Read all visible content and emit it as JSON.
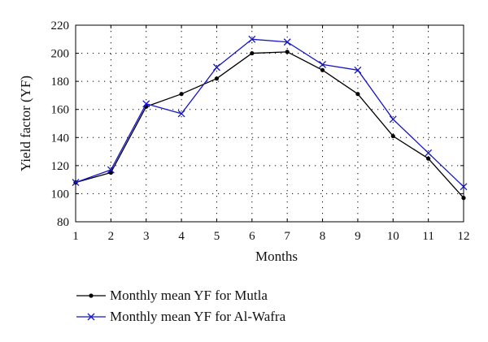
{
  "chart_data": {
    "type": "line",
    "x": [
      1,
      2,
      3,
      4,
      5,
      6,
      7,
      8,
      9,
      10,
      11,
      12
    ],
    "xlabel": "Months",
    "ylabel": "Yield factor (YF)",
    "xlim": [
      1,
      12
    ],
    "ylim": [
      80,
      220
    ],
    "xticks": [
      1,
      2,
      3,
      4,
      5,
      6,
      7,
      8,
      9,
      10,
      11,
      12
    ],
    "yticks": [
      80,
      100,
      120,
      140,
      160,
      180,
      200,
      220
    ],
    "grid": true,
    "legend_position": "bottom-left, below plot",
    "series": [
      {
        "name": "Monthly mean YF for Mutla",
        "color": "#000000",
        "marker": "dot",
        "values": [
          108,
          115,
          162,
          171,
          182,
          200,
          201,
          188,
          171,
          141,
          125,
          97
        ]
      },
      {
        "name": "Monthly mean YF for Al-Wafra",
        "color": "#1515c8",
        "marker": "x",
        "values": [
          108,
          117,
          164,
          157,
          190,
          210,
          208,
          192,
          188,
          153,
          129,
          105
        ]
      }
    ]
  }
}
